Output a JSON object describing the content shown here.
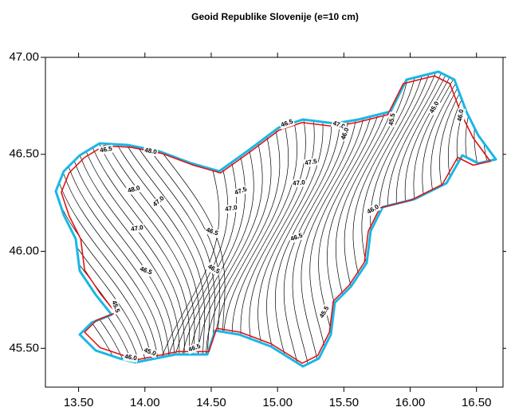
{
  "title": "Geoid Republike Slovenije (e=10 cm)",
  "xlim": [
    13.25,
    16.7
  ],
  "ylim": [
    45.3,
    47.0
  ],
  "xticks": [
    {
      "value": 13.5,
      "label": "13.50"
    },
    {
      "value": 14,
      "label": "14.00"
    },
    {
      "value": 14.5,
      "label": "14.50"
    },
    {
      "value": 15,
      "label": "15.00"
    },
    {
      "value": 15.5,
      "label": "15.50"
    },
    {
      "value": 16,
      "label": "16.00"
    },
    {
      "value": 16.5,
      "label": "16.50"
    }
  ],
  "yticks": [
    {
      "value": 45.5,
      "label": "45.50"
    },
    {
      "value": 46,
      "label": "46.00"
    },
    {
      "value": 46.5,
      "label": "46.50"
    },
    {
      "value": 47,
      "label": "47.00"
    }
  ],
  "contour_labels": [
    "46.5",
    "48.0",
    "48.0",
    "47.0",
    "47.0",
    "47.5",
    "47.0",
    "46.5",
    "46.5",
    "46.5",
    "46.5",
    "47.5",
    "47.0",
    "47.0",
    "46.5",
    "46.0",
    "45.5",
    "45.0",
    "46.0",
    "46.0",
    "45.5",
    "45.5",
    "45.0",
    "46.0",
    "46.5"
  ]
}
